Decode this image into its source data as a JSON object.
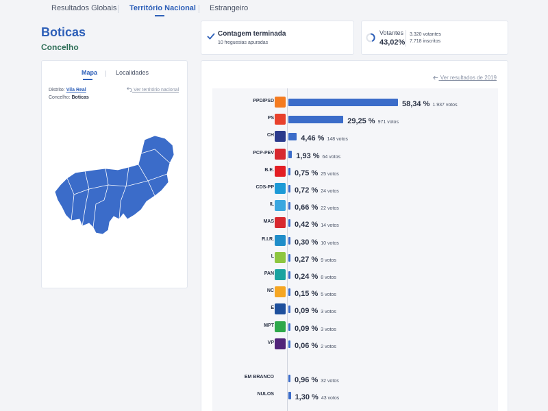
{
  "tabs": [
    {
      "label": "Resultados Globais",
      "active": false
    },
    {
      "label": "Território Nacional",
      "active": true
    },
    {
      "label": "Estrangeiro",
      "active": false
    }
  ],
  "page": {
    "title": "Boticas",
    "subtitle": "Concelho"
  },
  "map_card": {
    "tabs": [
      {
        "label": "Mapa",
        "active": true
      },
      {
        "label": "Localidades",
        "active": false
      }
    ],
    "district_label": "Distrito:",
    "district_value": "Vila Real",
    "municipality_label": "Concelho:",
    "municipality_value": "Boticas",
    "back_link": "Ver território nacional",
    "map_color": "#3b6cc9"
  },
  "count_card": {
    "title": "Contagem terminada",
    "subtitle": "10 freguesias apuradas"
  },
  "voters_card": {
    "label": "Votantes",
    "percent": "43,02%",
    "voters": "3.320 votantes",
    "registered": "7.718 inscritos"
  },
  "results": {
    "previous_link": "Ver resultados de 2019",
    "bar_color": "#3b6cc9",
    "parties": [
      {
        "name": "PPD/PSD",
        "percent": "58,34 %",
        "value": 58.34,
        "votes": "1.937 votos",
        "logo": "psd-logo",
        "logo_color": "#f47b20"
      },
      {
        "name": "PS",
        "percent": "29,25 %",
        "value": 29.25,
        "votes": "971 votos",
        "logo": "ps-logo",
        "logo_color": "#e8412c"
      },
      {
        "name": "CH",
        "percent": "4,46 %",
        "value": 4.46,
        "votes": "148 votos",
        "logo": "chega-logo",
        "logo_color": "#2b3a8c"
      },
      {
        "name": "PCP-PEV",
        "percent": "1,93 %",
        "value": 1.93,
        "votes": "64 votos",
        "logo": "cdu-logo",
        "logo_color": "#d7282f"
      },
      {
        "name": "B.E.",
        "percent": "0,75 %",
        "value": 0.75,
        "votes": "25 votos",
        "logo": "be-logo",
        "logo_color": "#e31e24"
      },
      {
        "name": "CDS-PP",
        "percent": "0,72 %",
        "value": 0.72,
        "votes": "24 votos",
        "logo": "cds-logo",
        "logo_color": "#1d9ad6"
      },
      {
        "name": "IL",
        "percent": "0,66 %",
        "value": 0.66,
        "votes": "22 votos",
        "logo": "il-logo",
        "logo_color": "#3aa7e0"
      },
      {
        "name": "MAS",
        "percent": "0,42 %",
        "value": 0.42,
        "votes": "14 votos",
        "logo": "mas-logo",
        "logo_color": "#d7282f"
      },
      {
        "name": "R.I.R.",
        "percent": "0,30 %",
        "value": 0.3,
        "votes": "10 votos",
        "logo": "rir-logo",
        "logo_color": "#1f8dc9"
      },
      {
        "name": "L",
        "percent": "0,27 %",
        "value": 0.27,
        "votes": "9 votos",
        "logo": "livre-logo",
        "logo_color": "#8dc63f"
      },
      {
        "name": "PAN",
        "percent": "0,24 %",
        "value": 0.24,
        "votes": "8 votos",
        "logo": "pan-logo",
        "logo_color": "#1aa3a0"
      },
      {
        "name": "NC",
        "percent": "0,15 %",
        "value": 0.15,
        "votes": "5 votos",
        "logo": "nc-logo",
        "logo_color": "#f5a623"
      },
      {
        "name": "E",
        "percent": "0,09 %",
        "value": 0.09,
        "votes": "3 votos",
        "logo": "ergue-te-logo",
        "logo_color": "#1d4f9c"
      },
      {
        "name": "MPT",
        "percent": "0,09 %",
        "value": 0.09,
        "votes": "3 votos",
        "logo": "mpt-logo",
        "logo_color": "#2ea84a"
      },
      {
        "name": "VP",
        "percent": "0,06 %",
        "value": 0.06,
        "votes": "2 votos",
        "logo": "volt-logo",
        "logo_color": "#502379"
      }
    ],
    "others": [
      {
        "name": "EM BRANCO",
        "percent": "0,96 %",
        "value": 0.96,
        "votes": "32 votos"
      },
      {
        "name": "NULOS",
        "percent": "1,30 %",
        "value": 1.3,
        "votes": "43 votos"
      }
    ]
  }
}
